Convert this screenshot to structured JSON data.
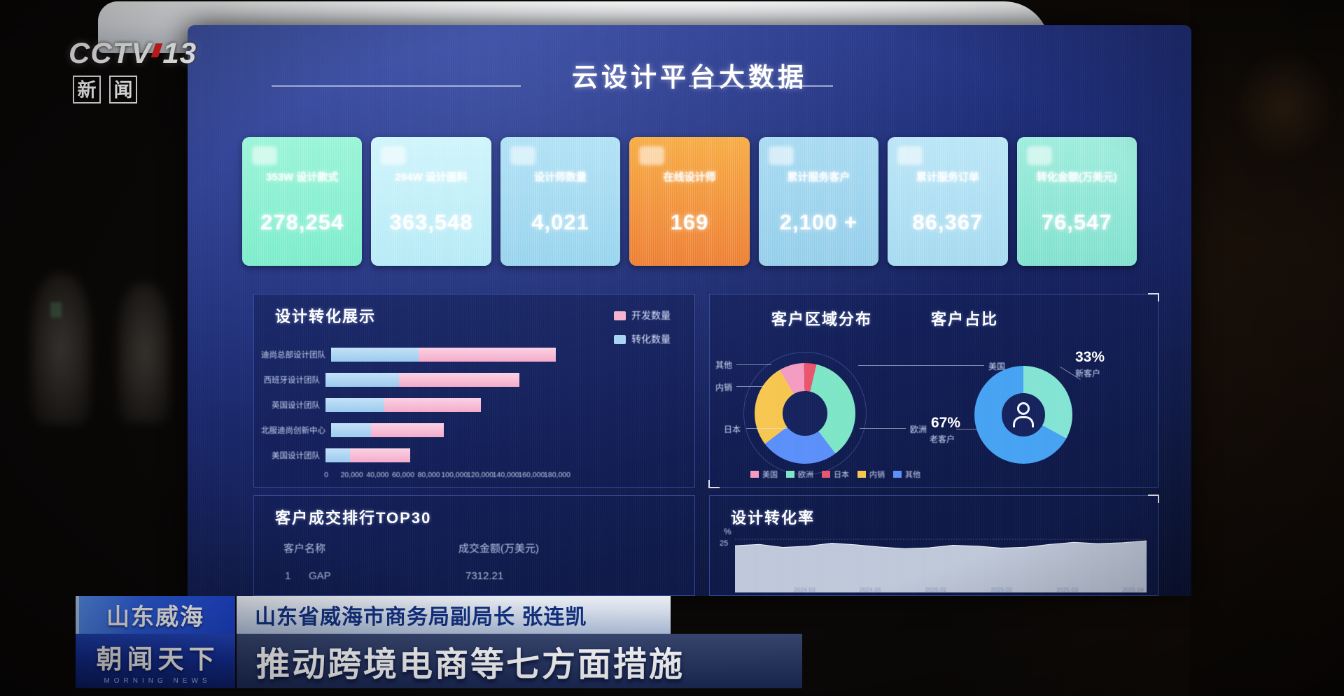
{
  "broadcast": {
    "channel": {
      "name": "CCTV",
      "number": "13",
      "sub_chars": [
        "新",
        "闻"
      ]
    },
    "banner": {
      "location_tag": "山东威海",
      "speaker": "山东省威海市商务局副局长 张连凯",
      "headline": "推动跨境电商等七方面措施",
      "program": "朝闻天下",
      "program_en": "MORNING NEWS"
    }
  },
  "screen": {
    "title": "云设计平台大数据",
    "kpi_cards": [
      {
        "label": "353W 设计款式",
        "value": "278,254",
        "colors": [
          "#98f4d6",
          "#7aeccb"
        ]
      },
      {
        "label": "294W 设计面料",
        "value": "363,548",
        "colors": [
          "#cff4fb",
          "#b4eaf6"
        ]
      },
      {
        "label": "设计师数量",
        "value": "4,021",
        "colors": [
          "#b0e1f5",
          "#97d3ed"
        ]
      },
      {
        "label": "在线设计师",
        "value": "169",
        "colors": [
          "#f7ab42",
          "#ed7d31"
        ],
        "highlight": true
      },
      {
        "label": "累计服务客户",
        "value": "2,100 +",
        "colors": [
          "#a6daf1",
          "#93cdea"
        ]
      },
      {
        "label": "累计服务订单",
        "value": "86,367",
        "colors": [
          "#b9e5f6",
          "#a3d9f0"
        ]
      },
      {
        "label": "转化金额(万美元)",
        "value": "76,547",
        "colors": [
          "#9cecdc",
          "#7fe0cd"
        ]
      }
    ]
  },
  "chart_data": [
    {
      "type": "bar",
      "title": "设计转化展示",
      "orientation": "horizontal",
      "stacked": true,
      "categories": [
        "迪尚总部设计团队",
        "西班牙设计团队",
        "英国设计团队",
        "北服迪尚创新中心",
        "美国设计团队"
      ],
      "series": [
        {
          "name": "转化数量",
          "color": "#a9d3f2",
          "values": [
            68000,
            57000,
            46000,
            31000,
            19000
          ]
        },
        {
          "name": "开发数量",
          "color": "#f5b3cf",
          "values": [
            107000,
            94000,
            75000,
            57000,
            47000
          ]
        }
      ],
      "xlim": [
        0,
        180000
      ],
      "x_ticks": [
        "0",
        "20,000",
        "40,000",
        "60,000",
        "80,000",
        "100,000",
        "120,000",
        "140,000",
        "160,000",
        "180,000"
      ],
      "legend_position": "top-right",
      "grid": false
    },
    {
      "type": "pie",
      "donut": true,
      "title": "客户区域分布",
      "segments": [
        {
          "name": "美国",
          "value": 8,
          "color": "#f49bc1"
        },
        {
          "name": "日本",
          "value": 4,
          "color": "#e8556d"
        },
        {
          "name": "欧洲",
          "value": 36,
          "color": "#7ee6c6"
        },
        {
          "name": "其他",
          "value": 25,
          "color": "#5b8ff9"
        },
        {
          "name": "内销",
          "value": 27,
          "color": "#f6c64f"
        }
      ],
      "legend": [
        {
          "name": "美国",
          "color": "#f49bc1"
        },
        {
          "name": "欧洲",
          "color": "#7ee6c6"
        },
        {
          "name": "日本",
          "color": "#e8556d"
        },
        {
          "name": "内销",
          "color": "#f6c64f"
        },
        {
          "name": "其他",
          "color": "#5b8ff9"
        }
      ],
      "legend_position": "bottom"
    },
    {
      "type": "pie",
      "donut": true,
      "title": "客户占比",
      "segments": [
        {
          "name": "新客户",
          "value": 33,
          "color": "#83e4d4"
        },
        {
          "name": "老客户",
          "value": 67,
          "color": "#46a2f2"
        }
      ],
      "labels": {
        "new_pct": "33%",
        "new": "新客户",
        "old_pct": "67%",
        "old": "老客户"
      }
    },
    {
      "type": "table",
      "title": "客户成交排行TOP30",
      "columns": [
        "客户名称",
        "成交金额(万美元)"
      ],
      "rows": [
        {
          "rank": "1",
          "name": "GAP",
          "amount": "7312.21"
        }
      ]
    },
    {
      "type": "area",
      "title": "设计转化率",
      "ylabel": "%",
      "y_ticks": [
        "25"
      ],
      "ylim": [
        0,
        25
      ],
      "x_ticks": [
        "2024.03",
        "2024.05",
        "2025.01",
        "2025.02",
        "2025.03",
        "2025.04"
      ],
      "values": [
        22.0,
        22.6,
        21.2,
        21.8,
        23.2,
        22.4,
        21.4,
        20.6,
        21.0,
        22.2,
        21.8,
        20.9,
        21.3,
        22.6,
        23.6,
        23.0,
        23.4,
        24.3
      ],
      "color": "#d9e2ee",
      "grid": true
    }
  ]
}
